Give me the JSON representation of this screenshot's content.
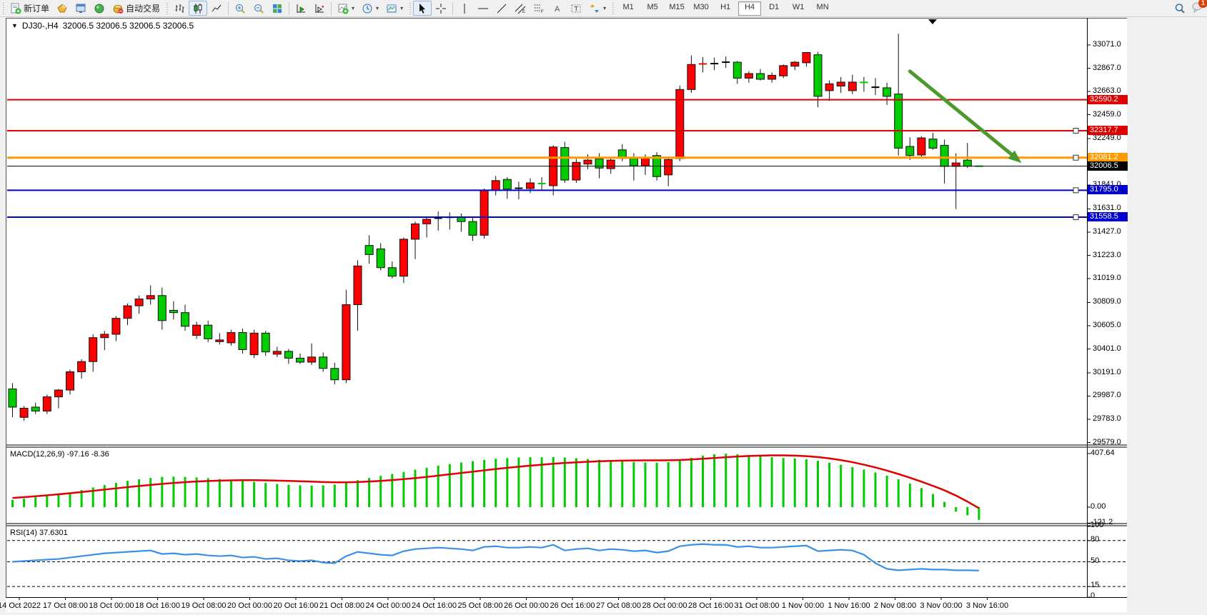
{
  "toolbar": {
    "new_order_label": "新订单",
    "auto_trading_label": "自动交易",
    "timeframes": [
      "M1",
      "M5",
      "M15",
      "M30",
      "H1",
      "H4",
      "D1",
      "W1",
      "MN"
    ],
    "active_timeframe": "H4",
    "notification_count": "1"
  },
  "chart": {
    "title_symbol": "DJ30-,H4",
    "title_quotes": "32006.5 32006.5 32006.5 32006.5",
    "dropdown_glyph": "▼",
    "autoscroll_glyph": "▼"
  },
  "price_axis": {
    "ticks": [
      {
        "text": "33071.0",
        "price": 33071.0
      },
      {
        "text": "32867.0",
        "price": 32867.0
      },
      {
        "text": "32663.0",
        "price": 32663.0
      },
      {
        "text": "32459.0",
        "price": 32459.0
      },
      {
        "text": "32249.0",
        "price": 32249.0
      },
      {
        "text": "31841.0",
        "price": 31841.0
      },
      {
        "text": "31631.0",
        "price": 31631.0
      },
      {
        "text": "31427.0",
        "price": 31427.0
      },
      {
        "text": "31223.0",
        "price": 31223.0
      },
      {
        "text": "31019.0",
        "price": 31019.0
      },
      {
        "text": "30809.0",
        "price": 30809.0
      },
      {
        "text": "30605.0",
        "price": 30605.0
      },
      {
        "text": "30401.0",
        "price": 30401.0
      },
      {
        "text": "30191.0",
        "price": 30191.0
      },
      {
        "text": "29987.0",
        "price": 29987.0
      },
      {
        "text": "29783.0",
        "price": 29783.0
      },
      {
        "text": "29579.0",
        "price": 29579.0
      }
    ],
    "line_labels": [
      {
        "text": "32590.2",
        "price": 32590.2,
        "bg": "#dd0000"
      },
      {
        "text": "32317.7",
        "price": 32317.7,
        "bg": "#dd0000"
      },
      {
        "text": "32081.2",
        "price": 32081.2,
        "bg": "#ff9900"
      },
      {
        "text": "32006.5",
        "price": 32006.5,
        "bg": "#000000"
      },
      {
        "text": "31795.0",
        "price": 31795.0,
        "bg": "#0000cc"
      },
      {
        "text": "31558.5",
        "price": 31558.5,
        "bg": "#0000cc"
      }
    ]
  },
  "time_axis": [
    "14 Oct 2022",
    "17 Oct 08:00",
    "18 Oct 00:00",
    "18 Oct 16:00",
    "19 Oct 08:00",
    "20 Oct 00:00",
    "20 Oct 16:00",
    "21 Oct 08:00",
    "24 Oct 00:00",
    "24 Oct 16:00",
    "25 Oct 08:00",
    "26 Oct 00:00",
    "26 Oct 16:00",
    "27 Oct 08:00",
    "28 Oct 00:00",
    "28 Oct 16:00",
    "31 Oct 08:00",
    "1 Nov 00:00",
    "1 Nov 16:00",
    "2 Nov 08:00",
    "3 Nov 00:00",
    "3 Nov 16:00"
  ],
  "indicators": {
    "macd_label": "MACD(12,26,9) -97.16 -8.36",
    "macd_ticks": [
      {
        "text": "407.64",
        "value": 407.64
      },
      {
        "text": "0.00",
        "value": 0
      },
      {
        "text": "-121.2",
        "value": -121.2
      }
    ],
    "rsi_label": "RSI(14) 37.6301",
    "rsi_ticks": [
      {
        "text": "100",
        "value": 100
      },
      {
        "text": "80",
        "value": 80
      },
      {
        "text": "50",
        "value": 50
      },
      {
        "text": "15",
        "value": 15
      },
      {
        "text": "0",
        "value": 0
      }
    ]
  },
  "chart_data": {
    "type": "candlestick",
    "symbol": "DJ30-",
    "period": "H4",
    "up_color": "#ff0000",
    "down_color": "#00cc00",
    "neutral_color": "#000000",
    "ohlc": [
      [
        30050,
        30100,
        29800,
        29890
      ],
      [
        29800,
        29900,
        29770,
        29880
      ],
      [
        29890,
        29930,
        29830,
        29855
      ],
      [
        29855,
        30000,
        29830,
        29980
      ],
      [
        29980,
        30050,
        29880,
        30040
      ],
      [
        30040,
        30220,
        30000,
        30200
      ],
      [
        30200,
        30310,
        30140,
        30290
      ],
      [
        30290,
        30530,
        30200,
        30500
      ],
      [
        30500,
        30560,
        30390,
        30530
      ],
      [
        30530,
        30690,
        30470,
        30670
      ],
      [
        30670,
        30800,
        30610,
        30780
      ],
      [
        30780,
        30870,
        30710,
        30840
      ],
      [
        30840,
        30960,
        30790,
        30870
      ],
      [
        30870,
        30940,
        30570,
        30650
      ],
      [
        30740,
        30820,
        30660,
        30720
      ],
      [
        30720,
        30790,
        30560,
        30600
      ],
      [
        30520,
        30640,
        30490,
        30610
      ],
      [
        30610,
        30650,
        30460,
        30490
      ],
      [
        30465,
        30540,
        30440,
        30480
      ],
      [
        30455,
        30570,
        30430,
        30545
      ],
      [
        30545,
        30580,
        30360,
        30395
      ],
      [
        30350,
        30570,
        30320,
        30540
      ],
      [
        30540,
        30560,
        30340,
        30375
      ],
      [
        30355,
        30420,
        30330,
        30380
      ],
      [
        30380,
        30400,
        30270,
        30320
      ],
      [
        30320,
        30360,
        30270,
        30285
      ],
      [
        30285,
        30450,
        30260,
        30330
      ],
      [
        30330,
        30370,
        30200,
        30230
      ],
      [
        30230,
        30280,
        30090,
        30130
      ],
      [
        30130,
        30920,
        30100,
        30790
      ],
      [
        30790,
        31180,
        30560,
        31130
      ],
      [
        31310,
        31400,
        31150,
        31230
      ],
      [
        31280,
        31330,
        31090,
        31115
      ],
      [
        31115,
        31170,
        31020,
        31040
      ],
      [
        31040,
        31380,
        30980,
        31365
      ],
      [
        31365,
        31520,
        31190,
        31500
      ],
      [
        31500,
        31560,
        31380,
        31540
      ],
      [
        31545,
        31610,
        31440,
        31555,
        "k"
      ],
      [
        31555,
        31600,
        31450,
        31560,
        "k"
      ],
      [
        31560,
        31590,
        31430,
        31520
      ],
      [
        31520,
        31560,
        31350,
        31400
      ],
      [
        31400,
        31810,
        31370,
        31795
      ],
      [
        31795,
        31920,
        31750,
        31880
      ],
      [
        31890,
        31910,
        31720,
        31805
      ],
      [
        31810,
        31870,
        31715,
        31815,
        "k"
      ],
      [
        31810,
        31900,
        31770,
        31860
      ],
      [
        31860,
        31910,
        31790,
        31848
      ],
      [
        31835,
        32190,
        31750,
        32175
      ],
      [
        32170,
        32220,
        31860,
        31885
      ],
      [
        31885,
        32070,
        31860,
        32040
      ],
      [
        32025,
        32110,
        31980,
        32060
      ],
      [
        32070,
        32120,
        31900,
        31990
      ],
      [
        31985,
        32080,
        31940,
        32060
      ],
      [
        32150,
        32200,
        32050,
        32075
      ],
      [
        32075,
        32120,
        31880,
        32010
      ],
      [
        32010,
        32110,
        31930,
        32085
      ],
      [
        32100,
        32130,
        31880,
        31915
      ],
      [
        31930,
        32090,
        31830,
        32065
      ],
      [
        32073,
        32715,
        32050,
        32680
      ],
      [
        32680,
        32980,
        32650,
        32900
      ],
      [
        32900,
        32965,
        32830,
        32910
      ],
      [
        32910,
        32960,
        32850,
        32905,
        "k"
      ],
      [
        32920,
        32970,
        32870,
        32920,
        "k"
      ],
      [
        32920,
        32930,
        32730,
        32780
      ],
      [
        32780,
        32840,
        32740,
        32820
      ],
      [
        32820,
        32860,
        32760,
        32770
      ],
      [
        32770,
        32830,
        32740,
        32805
      ],
      [
        32800,
        32900,
        32780,
        32890
      ],
      [
        32885,
        32930,
        32850,
        32920
      ],
      [
        32915,
        33010,
        32880,
        33005
      ],
      [
        32985,
        33010,
        32525,
        32620
      ],
      [
        32670,
        32760,
        32580,
        32730
      ],
      [
        32710,
        32790,
        32650,
        32745
      ],
      [
        32670,
        32810,
        32640,
        32745
      ],
      [
        32745,
        32790,
        32660,
        32740
      ],
      [
        32700,
        32780,
        32630,
        32700,
        "k"
      ],
      [
        32695,
        32740,
        32545,
        32620
      ],
      [
        32640,
        33170,
        32100,
        32165
      ],
      [
        32180,
        32260,
        32060,
        32100
      ],
      [
        32105,
        32270,
        32080,
        32255
      ],
      [
        32245,
        32300,
        32150,
        32165
      ],
      [
        32190,
        32240,
        31855,
        32005
      ],
      [
        32005,
        32120,
        31630,
        32035
      ],
      [
        32060,
        32210,
        31990,
        32006
      ],
      [
        32006.5,
        32006.5,
        32006.5,
        32006.5,
        "g"
      ]
    ],
    "hlines": [
      {
        "price": 32590.2,
        "color": "#dd0000",
        "width": 2,
        "marker": false
      },
      {
        "price": 32317.7,
        "color": "#dd0000",
        "width": 2,
        "marker": true
      },
      {
        "price": 32081.2,
        "color": "#ff9900",
        "width": 3,
        "marker": true
      },
      {
        "price": 32006.5,
        "color": "#000000",
        "width": 1,
        "marker": false
      },
      {
        "price": 31795.0,
        "color": "#0000cc",
        "width": 2,
        "marker": true
      },
      {
        "price": 31558.5,
        "color": "#0000cc",
        "width": 2,
        "marker": true
      }
    ],
    "arrow": {
      "from_bar": 78,
      "from_price": 32840,
      "to_bar": 87.7,
      "to_price": 32035,
      "color": "#4c9a2d"
    },
    "macd_hist": [
      55,
      65,
      75,
      85,
      95,
      110,
      130,
      150,
      168,
      185,
      200,
      212,
      222,
      230,
      232,
      230,
      226,
      220,
      214,
      208,
      200,
      192,
      184,
      176,
      170,
      166,
      164,
      166,
      172,
      185,
      205,
      222,
      238,
      252,
      268,
      285,
      300,
      315,
      328,
      340,
      350,
      360,
      368,
      374,
      378,
      380,
      379,
      382,
      378,
      372,
      366,
      360,
      356,
      350,
      344,
      340,
      338,
      342,
      356,
      375,
      392,
      402,
      407,
      403,
      396,
      388,
      380,
      374,
      370,
      364,
      352,
      338,
      322,
      305,
      286,
      264,
      240,
      212,
      180,
      146,
      100,
      40,
      -35,
      -62,
      -97
    ],
    "macd_signal": [
      70,
      76,
      83,
      90,
      98,
      106,
      115,
      124,
      134,
      143,
      152,
      161,
      169,
      177,
      184,
      190,
      195,
      199,
      202,
      204,
      205,
      205,
      204,
      202,
      200,
      197,
      194,
      191,
      189,
      189,
      191,
      195,
      200,
      206,
      213,
      221,
      230,
      240,
      250,
      260,
      270,
      280,
      290,
      299,
      308,
      316,
      323,
      330,
      336,
      341,
      345,
      349,
      352,
      354,
      355,
      356,
      356,
      357,
      359,
      363,
      368,
      374,
      380,
      385,
      389,
      392,
      394,
      394,
      392,
      388,
      381,
      371,
      358,
      342,
      323,
      302,
      278,
      252,
      224,
      194,
      162,
      128,
      88,
      42,
      -8
    ],
    "rsi": [
      50,
      51,
      52,
      53,
      54,
      56,
      58,
      60,
      62,
      63,
      64,
      65,
      66,
      61,
      62,
      60,
      61,
      59,
      58,
      59,
      56,
      57,
      54,
      55,
      52,
      51,
      52,
      49,
      48,
      58,
      64,
      62,
      60,
      59,
      65,
      68,
      69,
      70,
      69,
      68,
      66,
      71,
      72,
      70,
      70,
      71,
      70,
      74,
      66,
      68,
      69,
      66,
      68,
      67,
      65,
      66,
      63,
      65,
      72,
      74,
      75,
      74,
      74,
      71,
      72,
      70,
      70,
      71,
      72,
      73,
      65,
      66,
      67,
      66,
      60,
      48,
      40,
      38,
      39,
      40,
      39,
      39,
      38,
      38,
      37.6
    ],
    "rsi_levels": [
      80,
      50,
      15
    ],
    "macd_histogram_color": "#00cc00",
    "macd_signal_color": "#e00000",
    "rsi_line_color": "#3a8fe8"
  }
}
